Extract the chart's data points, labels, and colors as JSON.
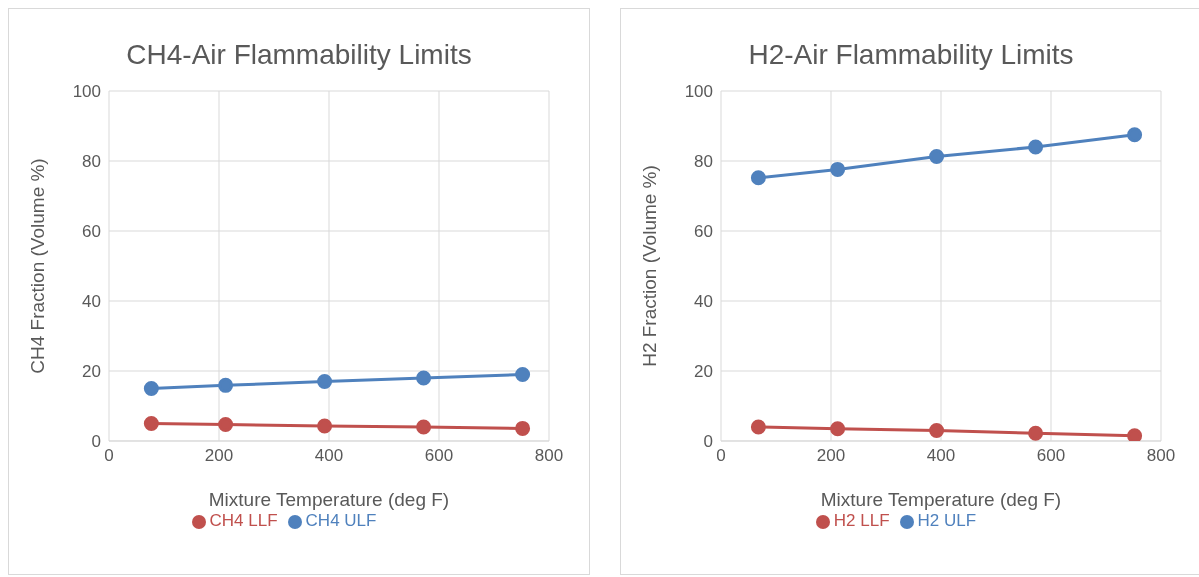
{
  "chart_data": [
    {
      "type": "line",
      "title": "CH4-Air Flammability Limits",
      "xlabel": "Mixture Temperature (deg F)",
      "ylabel": "CH4 Fraction (Volume %)",
      "xlim": [
        0,
        800
      ],
      "xticks": [
        0,
        200,
        400,
        600,
        800
      ],
      "ylim": [
        0,
        100
      ],
      "yticks": [
        0,
        20,
        40,
        60,
        80,
        100
      ],
      "grid": true,
      "legend": "bottom",
      "marker": "circle",
      "series": [
        {
          "name": "CH4 ULF",
          "color": "#4f81bd",
          "x": [
            77,
            212,
            392,
            572,
            752
          ],
          "values": [
            15,
            15.9,
            17,
            18,
            19
          ]
        },
        {
          "name": "CH4 LLF",
          "color": "#c0504d",
          "x": [
            77,
            212,
            392,
            572,
            752
          ],
          "values": [
            5,
            4.7,
            4.3,
            4,
            3.6
          ]
        }
      ]
    },
    {
      "type": "line",
      "title": "H2-Air Flammability Limits",
      "xlabel": "Mixture Temperature (deg F)",
      "ylabel": "H2 Fraction (Volume %)",
      "xlim": [
        0,
        800
      ],
      "xticks": [
        0,
        200,
        400,
        600,
        800
      ],
      "ylim": [
        0,
        100
      ],
      "yticks": [
        0,
        20,
        40,
        60,
        80,
        100
      ],
      "grid": true,
      "legend": "bottom",
      "marker": "circle",
      "series": [
        {
          "name": "H2 ULF",
          "color": "#4f81bd",
          "x": [
            68,
            212,
            392,
            572,
            752
          ],
          "values": [
            75.2,
            77.6,
            81.3,
            84,
            87.5
          ]
        },
        {
          "name": "H2 LLF",
          "color": "#c0504d",
          "x": [
            68,
            212,
            392,
            572,
            752
          ],
          "values": [
            4,
            3.5,
            3,
            2.2,
            1.5
          ]
        }
      ]
    }
  ]
}
